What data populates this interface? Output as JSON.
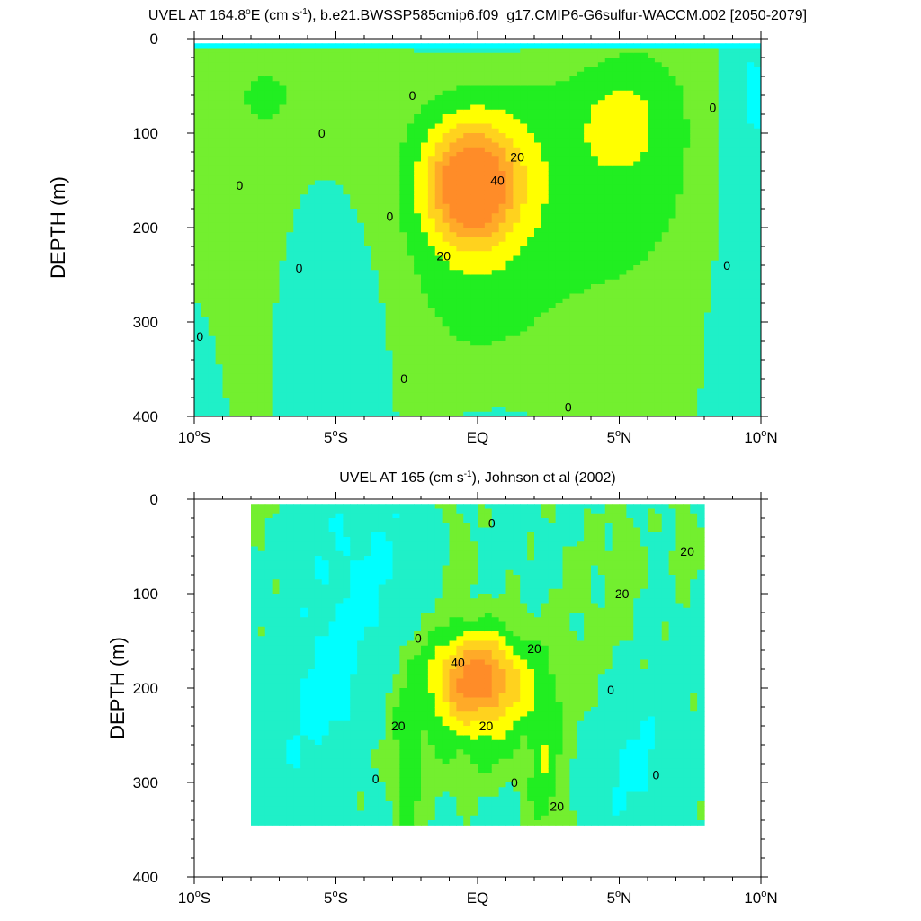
{
  "colors": {
    "fill_levels": [
      {
        "level": "< -10",
        "color": "#00ffff"
      },
      {
        "level": "-10 to 0",
        "color": "#1ff0c8"
      },
      {
        "level": "0 to 10",
        "color": "#73ef2f"
      },
      {
        "level": "10 to 20",
        "color": "#21ee21"
      },
      {
        "level": "20 to 30",
        "color": "#ffff00"
      },
      {
        "level": "30 to 40",
        "color": "#ffd21e"
      },
      {
        "level": "40 to 50",
        "color": "#ffaa28"
      },
      {
        "level": "> 50",
        "color": "#ff8c28"
      }
    ],
    "contour_line": "#000000"
  },
  "chart_data": [
    {
      "type": "heatmap",
      "subtype": "filled-contour",
      "title": "UVEL AT 164.8°E (cm s⁻¹), b.e21.BWSSP585cmip6.f09_g17.CMIP6-G6sulfur-WACCM.002 [2050-2079]",
      "title_parts": {
        "pre": "UVEL AT 164.8",
        "deg": "o",
        "mid": "E (cm s",
        "exp": "-1",
        "post": "), b.e21.BWSSP585cmip6.f09_g17.CMIP6-G6sulfur-WACCM.002 [2050-2079]"
      },
      "xlabel": "",
      "ylabel": "DEPTH (m)",
      "xlim": [
        -10,
        10
      ],
      "ylim": [
        0,
        400
      ],
      "y_reversed": true,
      "x_ticks": [
        -10,
        -5,
        0,
        5,
        10
      ],
      "x_tick_labels": [
        {
          "pre": "10",
          "deg": "o",
          "post": "S"
        },
        {
          "pre": "5",
          "deg": "o",
          "post": "S"
        },
        {
          "pre": "EQ",
          "deg": "",
          "post": ""
        },
        {
          "pre": "5",
          "deg": "o",
          "post": "N"
        },
        {
          "pre": "10",
          "deg": "o",
          "post": "N"
        }
      ],
      "y_ticks": [
        0,
        100,
        200,
        300,
        400
      ],
      "y_tick_labels": [
        "0",
        "100",
        "200",
        "300",
        "400"
      ],
      "data_extent": {
        "x": [
          -10,
          10
        ],
        "y": [
          5,
          400
        ]
      },
      "core": {
        "lat": -0.2,
        "depth": 155,
        "max_value": 50
      },
      "contour_labels": [
        {
          "text": "0",
          "lat": -2.3,
          "depth": 60
        },
        {
          "text": "0",
          "lat": -5.5,
          "depth": 100
        },
        {
          "text": "0",
          "lat": -8.4,
          "depth": 155
        },
        {
          "text": "0",
          "lat": -3.1,
          "depth": 188
        },
        {
          "text": "0",
          "lat": -6.3,
          "depth": 243
        },
        {
          "text": "0",
          "lat": -9.8,
          "depth": 315
        },
        {
          "text": "0",
          "lat": -2.6,
          "depth": 360
        },
        {
          "text": "0",
          "lat": 3.2,
          "depth": 390
        },
        {
          "text": "0",
          "lat": 8.3,
          "depth": 73
        },
        {
          "text": "0",
          "lat": 8.8,
          "depth": 240
        },
        {
          "text": "20",
          "lat": 1.4,
          "depth": 125
        },
        {
          "text": "20",
          "lat": -1.2,
          "depth": 230
        },
        {
          "text": "40",
          "lat": 0.7,
          "depth": 150
        }
      ]
    },
    {
      "type": "heatmap",
      "subtype": "filled-contour",
      "title": "UVEL AT 165 (cm s⁻¹), Johnson et al (2002)",
      "title_parts": {
        "pre": "UVEL AT 165",
        "deg": "",
        "mid": " (cm s",
        "exp": "-1",
        "post": "), Johnson et al (2002)"
      },
      "xlabel": "",
      "ylabel": "DEPTH (m)",
      "xlim": [
        -10,
        10
      ],
      "ylim": [
        0,
        400
      ],
      "y_reversed": true,
      "x_ticks": [
        -10,
        -5,
        0,
        5,
        10
      ],
      "x_tick_labels": [
        {
          "pre": "10",
          "deg": "o",
          "post": "S"
        },
        {
          "pre": "5",
          "deg": "o",
          "post": "S"
        },
        {
          "pre": "EQ",
          "deg": "",
          "post": ""
        },
        {
          "pre": "5",
          "deg": "o",
          "post": "N"
        },
        {
          "pre": "10",
          "deg": "o",
          "post": "N"
        }
      ],
      "y_ticks": [
        0,
        100,
        200,
        300,
        400
      ],
      "y_tick_labels": [
        "0",
        "100",
        "200",
        "300",
        "400"
      ],
      "data_extent": {
        "x": [
          -8,
          8
        ],
        "y": [
          5,
          345
        ]
      },
      "core": {
        "lat": 0.0,
        "depth": 190,
        "max_value": 45
      },
      "contour_labels": [
        {
          "text": "0",
          "lat": 0.5,
          "depth": 25
        },
        {
          "text": "0",
          "lat": -2.1,
          "depth": 147
        },
        {
          "text": "0",
          "lat": 4.7,
          "depth": 202
        },
        {
          "text": "0",
          "lat": -3.6,
          "depth": 296
        },
        {
          "text": "0",
          "lat": 1.3,
          "depth": 300
        },
        {
          "text": "0",
          "lat": 6.3,
          "depth": 292
        },
        {
          "text": "20",
          "lat": 7.4,
          "depth": 55
        },
        {
          "text": "20",
          "lat": 5.1,
          "depth": 100
        },
        {
          "text": "20",
          "lat": 2.0,
          "depth": 158
        },
        {
          "text": "20",
          "lat": -2.8,
          "depth": 240
        },
        {
          "text": "20",
          "lat": 0.3,
          "depth": 240
        },
        {
          "text": "20",
          "lat": 2.8,
          "depth": 325
        },
        {
          "text": "40",
          "lat": -0.7,
          "depth": 173
        }
      ]
    }
  ]
}
